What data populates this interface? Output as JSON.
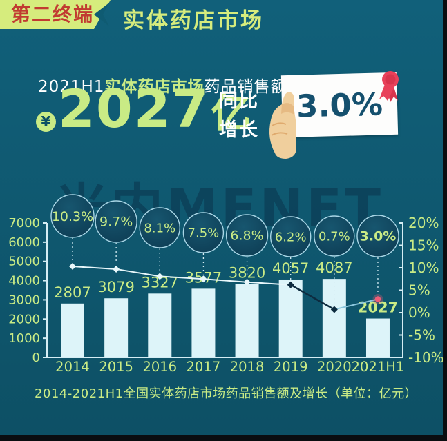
{
  "colors": {
    "frame": "#0a0d10",
    "bg_top": "#11607a",
    "bg_bottom": "#0d5065",
    "pale_green": "#d6ec7d",
    "light_green": "#c9eb85",
    "red": "#c13b31",
    "ribbon_red": "#e8415a",
    "card_text": "#15506e",
    "bar_fill": "#ddf4f9",
    "axis": "#d5edf4",
    "line_light": "#e8f7fb",
    "line_dark": "#0d2b3f",
    "line_mid": "#8cc6dd",
    "marker_pink": "#ef5d77",
    "bubble_stroke": "#a9d6e6",
    "bubble_fill_center": "#17566f",
    "bubble_fill_edge": "#0c3950",
    "hand": "#f0cf9d",
    "hand_shade": "#dfaa6e",
    "watermark": "#0a3049",
    "white": "#ffffff"
  },
  "header": {
    "badge_label": "第二终端",
    "section_title": "实体药店市场"
  },
  "hero": {
    "headline_prefix": "2021H1",
    "headline_highlight": "实体药店市场",
    "headline_suffix": "药品销售额达",
    "currency_symbol": "¥",
    "amount": "2027",
    "amount_unit": "亿",
    "yoy_label_line1": "同比",
    "yoy_label_line2": "增长",
    "yoy_value": "3.0%"
  },
  "watermark_text": "米内MENET",
  "caption": "2014-2021H1全国实体药店市场药品销售额及增长（单位：亿元）",
  "chart_data": {
    "type": "bar",
    "subtype": "bar+line combo",
    "title": "2014-2021H1全国实体药店市场药品销售额及增长（单位：亿元）",
    "categories": [
      "2014",
      "2015",
      "2016",
      "2017",
      "2018",
      "2019",
      "2020",
      "2021H1"
    ],
    "series": [
      {
        "name": "药品销售额（亿元）",
        "type": "bar",
        "axis": "left",
        "values": [
          2807,
          3079,
          3327,
          3577,
          3820,
          4057,
          4087,
          2027
        ]
      },
      {
        "name": "同比增长（%）",
        "type": "line",
        "axis": "right",
        "values": [
          10.3,
          9.7,
          8.1,
          7.5,
          6.8,
          6.2,
          0.7,
          3.0
        ]
      }
    ],
    "left_axis": {
      "min": 0,
      "max": 7000,
      "step": 1000
    },
    "right_axis": {
      "min": -10,
      "max": 20,
      "step": 5,
      "suffix": "%"
    },
    "highlight_index": 7,
    "grid": false,
    "legend": false
  }
}
